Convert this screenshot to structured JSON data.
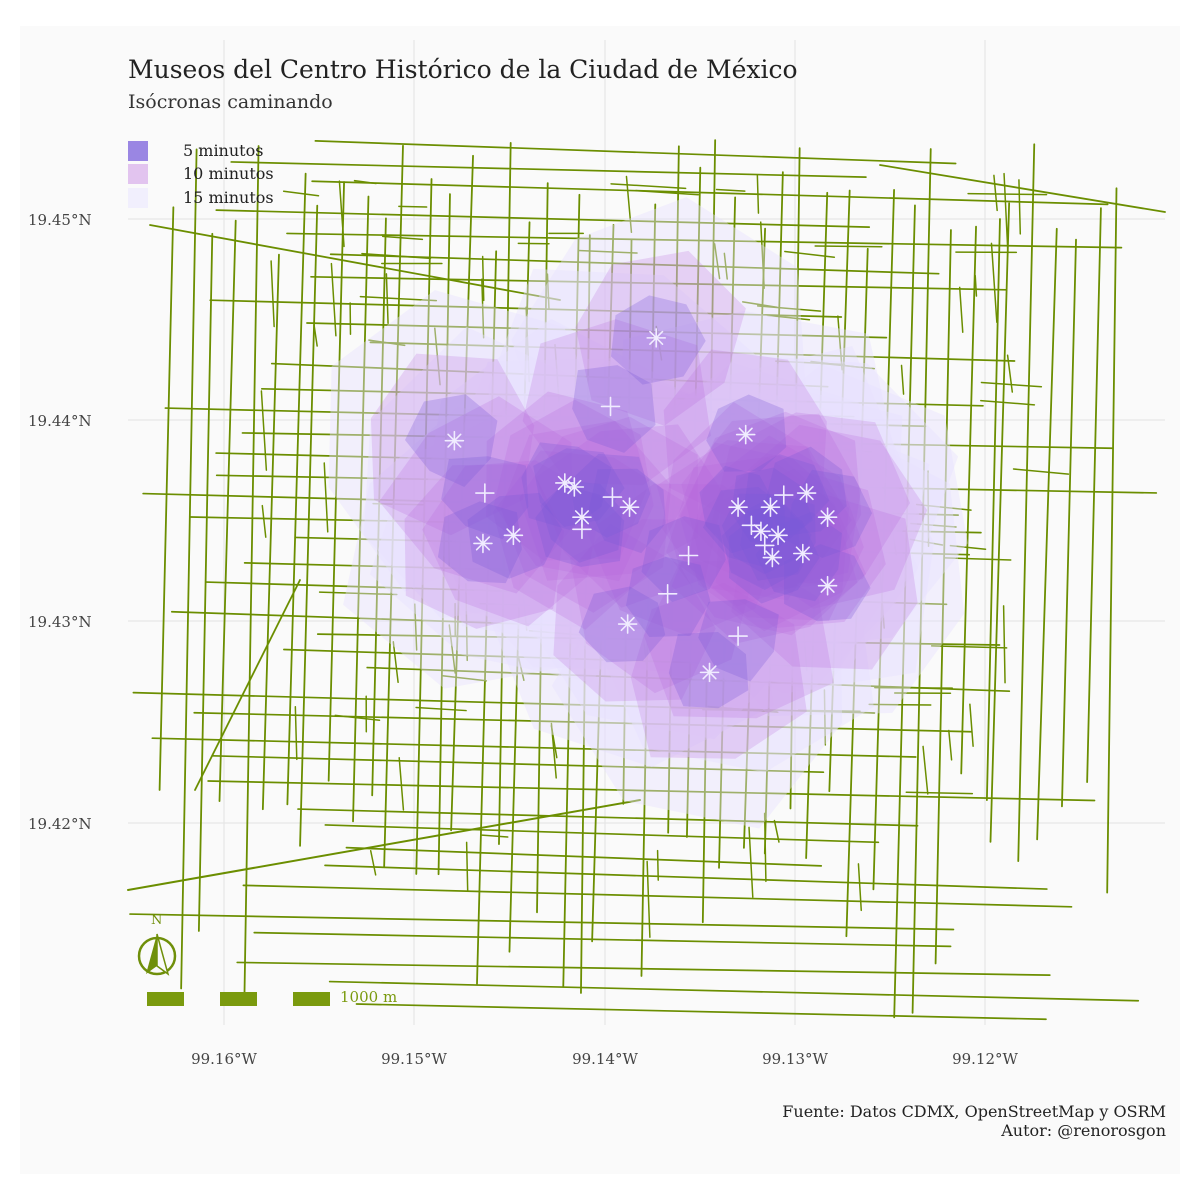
{
  "title": "Museos del Centro Histórico de la Ciudad de México",
  "subtitle": "Isócronas caminando",
  "legend": [
    {
      "label": "5 minutos",
      "color": "#7b5ad8"
    },
    {
      "label": "10 minutos",
      "color": "#c98ae3"
    },
    {
      "label": "15 minutos",
      "color": "#ebe6ff"
    }
  ],
  "axes": {
    "y_ticks": [
      "19.45°N",
      "19.44°N",
      "19.43°N",
      "19.42°N"
    ],
    "x_ticks": [
      "99.16°W",
      "99.15°W",
      "99.14°W",
      "99.13°W",
      "99.12°W"
    ]
  },
  "map": {
    "street_color": "#6b8e00",
    "ring_colors": {
      "5": "#7b5ad8",
      "10": "#b766dc",
      "15": "#e6e0ff"
    },
    "museum_marker_icon": "asterisk-cross-icon",
    "museums": [
      {
        "lon": -99.1373,
        "lat": 19.4441
      },
      {
        "lon": -99.1397,
        "lat": 19.4407
      },
      {
        "lon": -99.1479,
        "lat": 19.439
      },
      {
        "lon": -99.1326,
        "lat": 19.4393
      },
      {
        "lon": -99.1463,
        "lat": 19.4364
      },
      {
        "lon": -99.1421,
        "lat": 19.4369
      },
      {
        "lon": -99.1416,
        "lat": 19.4367
      },
      {
        "lon": -99.1396,
        "lat": 19.4362
      },
      {
        "lon": -99.1387,
        "lat": 19.4357
      },
      {
        "lon": -99.1412,
        "lat": 19.4352
      },
      {
        "lon": -99.1412,
        "lat": 19.4346
      },
      {
        "lon": -99.1464,
        "lat": 19.4339
      },
      {
        "lon": -99.1448,
        "lat": 19.4343
      },
      {
        "lon": -99.1356,
        "lat": 19.4333
      },
      {
        "lon": -99.133,
        "lat": 19.4357
      },
      {
        "lon": -99.1313,
        "lat": 19.4357
      },
      {
        "lon": -99.1306,
        "lat": 19.4363
      },
      {
        "lon": -99.1294,
        "lat": 19.4364
      },
      {
        "lon": -99.1283,
        "lat": 19.4352
      },
      {
        "lon": -99.1323,
        "lat": 19.4348
      },
      {
        "lon": -99.1318,
        "lat": 19.4345
      },
      {
        "lon": -99.1309,
        "lat": 19.4343
      },
      {
        "lon": -99.1316,
        "lat": 19.4338
      },
      {
        "lon": -99.1312,
        "lat": 19.4332
      },
      {
        "lon": -99.1296,
        "lat": 19.4334
      },
      {
        "lon": -99.1367,
        "lat": 19.4314
      },
      {
        "lon": -99.1283,
        "lat": 19.4318
      },
      {
        "lon": -99.1388,
        "lat": 19.4299
      },
      {
        "lon": -99.133,
        "lat": 19.4293
      },
      {
        "lon": -99.1345,
        "lat": 19.4275
      }
    ]
  },
  "north_arrow": {
    "label": "N"
  },
  "scale_bar": {
    "label": "1000 m"
  },
  "caption": {
    "line1": "Fuente: Datos CDMX, OpenStreetMap y OSRM",
    "line2": "Autor: @renorosgon"
  }
}
